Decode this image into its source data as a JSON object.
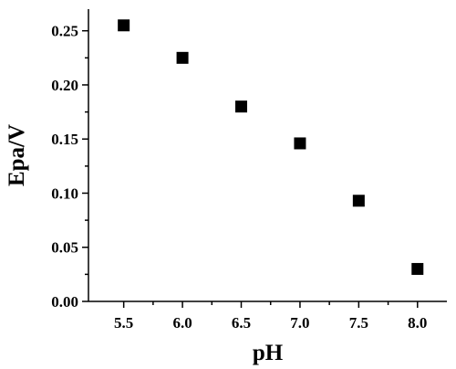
{
  "chart_data": {
    "type": "scatter",
    "title": "",
    "xlabel": "pH",
    "ylabel": "Epa/V",
    "xlim": [
      5.2,
      8.25
    ],
    "ylim": [
      0.0,
      0.27
    ],
    "x_ticks": [
      5.5,
      6.0,
      6.5,
      7.0,
      7.5,
      8.0
    ],
    "x_tick_labels": [
      "5.5",
      "6.0",
      "6.5",
      "7.0",
      "7.5",
      "8.0"
    ],
    "y_ticks": [
      0.0,
      0.05,
      0.1,
      0.15,
      0.2,
      0.25
    ],
    "y_tick_labels": [
      "0.00",
      "0.05",
      "0.10",
      "0.15",
      "0.20",
      "0.25"
    ],
    "grid": false,
    "marker": "square",
    "marker_color": "#000000",
    "series": [
      {
        "points": [
          {
            "x": 5.5,
            "y": 0.255
          },
          {
            "x": 6.0,
            "y": 0.225
          },
          {
            "x": 6.5,
            "y": 0.18
          },
          {
            "x": 7.0,
            "y": 0.146
          },
          {
            "x": 7.5,
            "y": 0.093
          },
          {
            "x": 8.0,
            "y": 0.03
          }
        ]
      }
    ]
  }
}
